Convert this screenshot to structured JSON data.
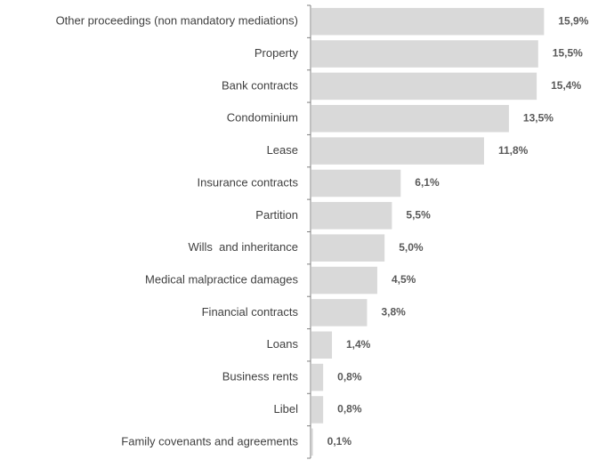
{
  "chart_data": {
    "type": "bar",
    "orientation": "horizontal",
    "categories": [
      "Other proceedings (non mandatory mediations)",
      "Property",
      "Bank contracts",
      "Condominium",
      "Lease",
      "Insurance contracts",
      "Partition",
      "Wills  and inheritance",
      "Medical malpractice damages",
      "Financial contracts",
      "Loans",
      "Business rents",
      "Libel",
      "Family covenants and agreements"
    ],
    "values": [
      15.9,
      15.5,
      15.4,
      13.5,
      11.8,
      6.1,
      5.5,
      5.0,
      4.5,
      3.8,
      1.4,
      0.8,
      0.8,
      0.1
    ],
    "value_labels": [
      "15,9%",
      "15,5%",
      "15,4%",
      "13,5%",
      "11,8%",
      "6,1%",
      "5,5%",
      "5,0%",
      "4,5%",
      "3,8%",
      "1,4%",
      "0,8%",
      "0,8%",
      "0,1%"
    ],
    "xlim": [
      0,
      16
    ],
    "bar_color": "#d9d9d9",
    "grid": false,
    "legend": "none"
  }
}
